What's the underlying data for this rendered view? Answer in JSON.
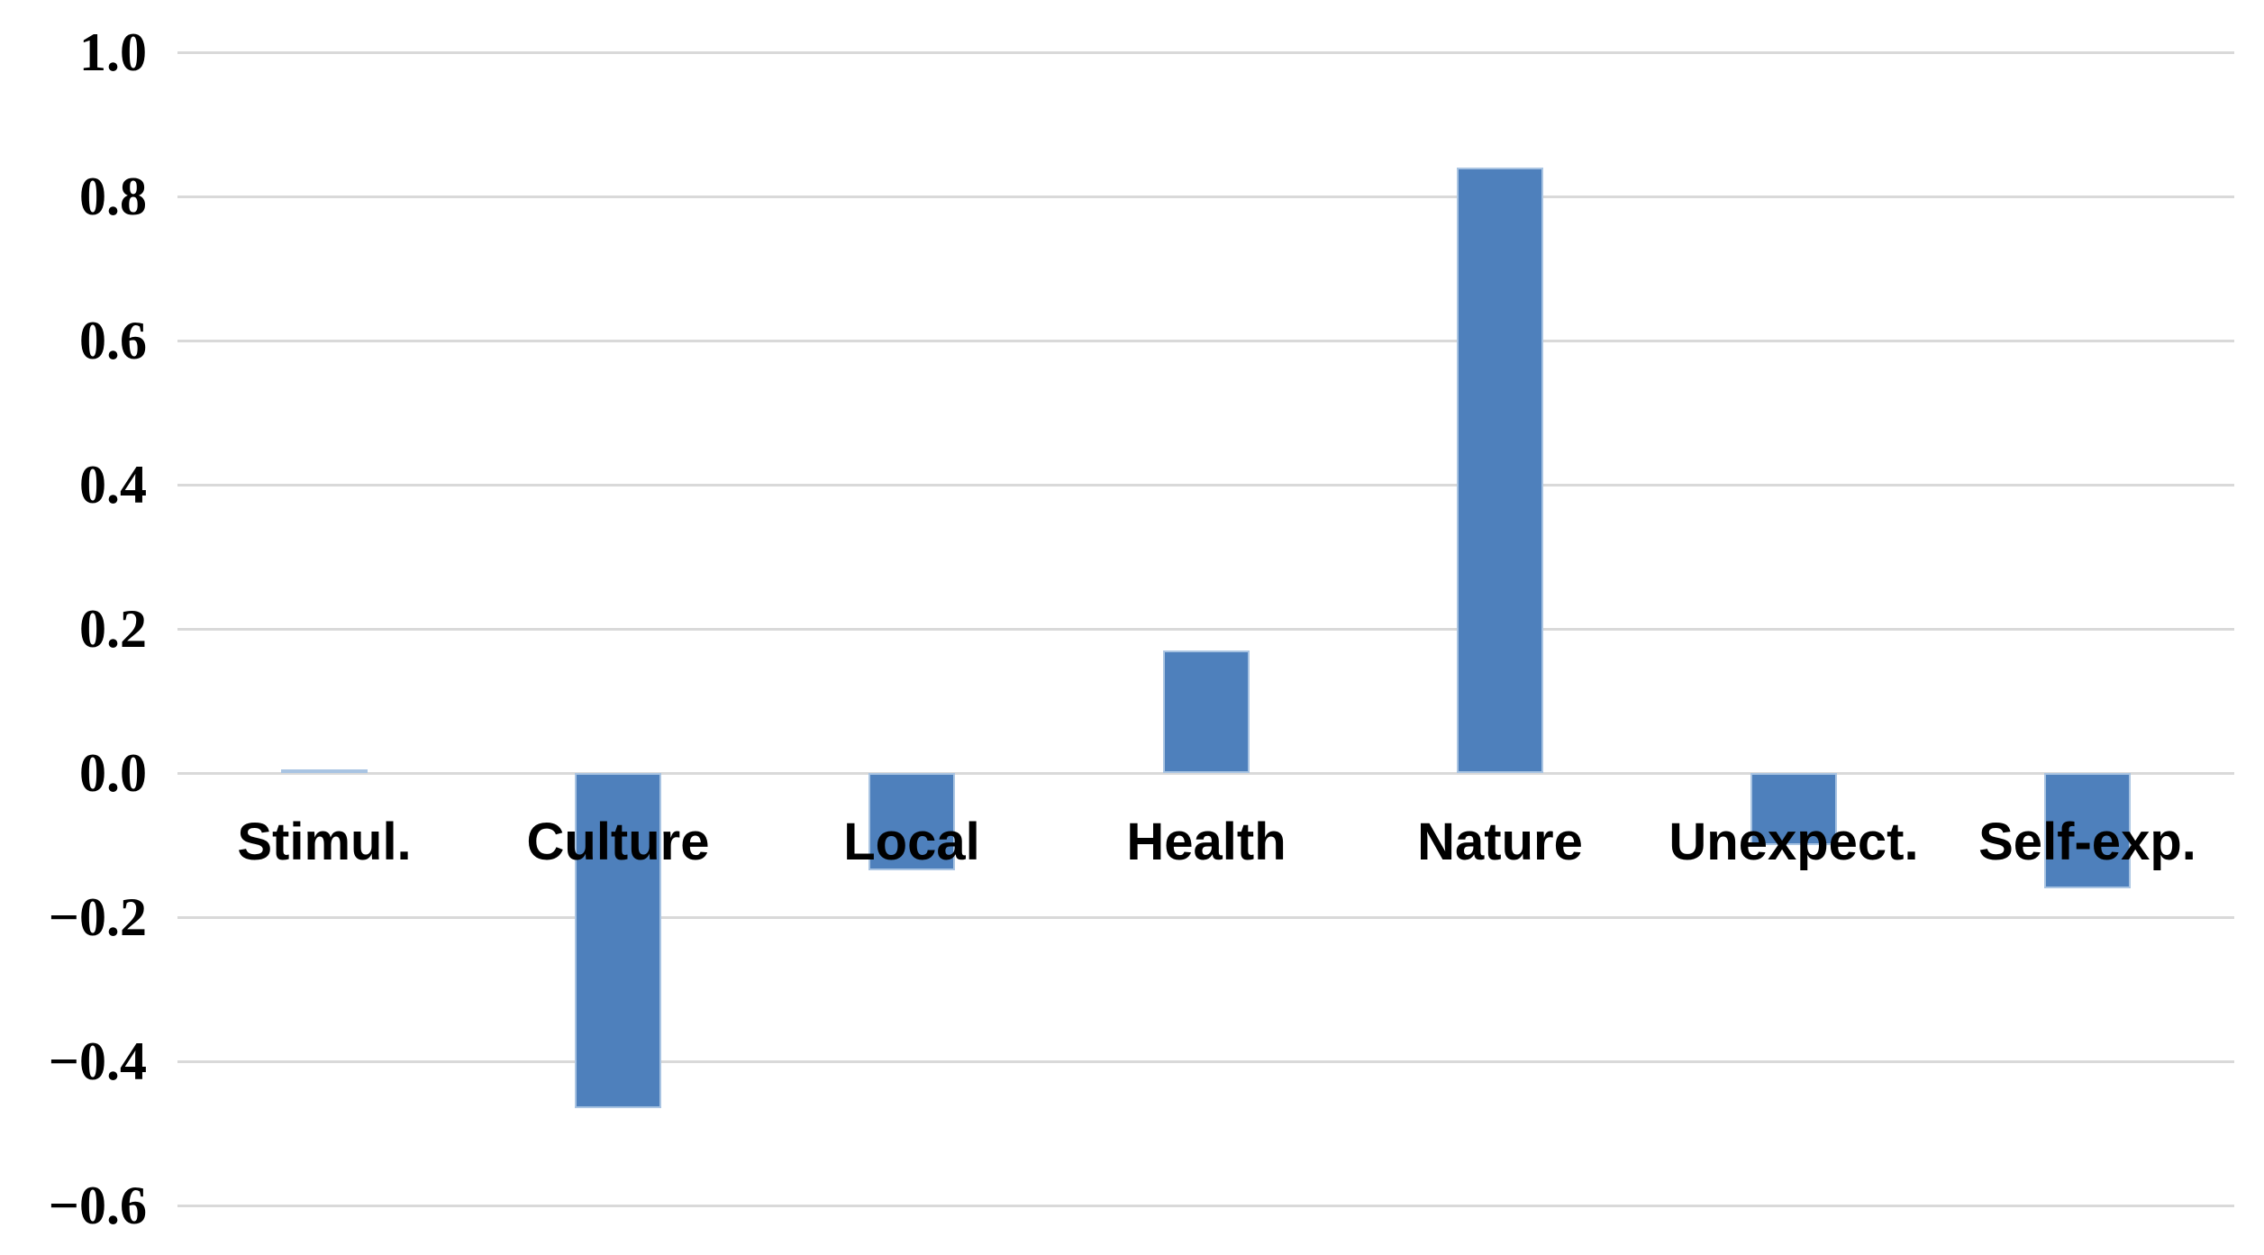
{
  "chart_data": {
    "type": "bar",
    "title": "",
    "xlabel": "",
    "ylabel": "",
    "categories": [
      "Stimul.",
      "Culture",
      "Local",
      "Health",
      "Nature",
      "Unexpect.",
      "Self-exp."
    ],
    "values": [
      0.005,
      -0.465,
      -0.135,
      0.17,
      0.84,
      -0.1,
      -0.16
    ],
    "ylim": [
      -0.6,
      1.0
    ],
    "ytick_step": 0.2,
    "ytick_labels": [
      "1.0",
      "0.8",
      "0.6",
      "0.4",
      "0.2",
      "0.0",
      "−0.2",
      "−0.4",
      "−0.6"
    ],
    "grid": true,
    "legend": false,
    "colors": {
      "bar_fill": "#4e80bc",
      "bar_edge": "#a9c4e2",
      "gridline": "#d9d9d9",
      "text": "#000000",
      "background": "#ffffff"
    }
  }
}
